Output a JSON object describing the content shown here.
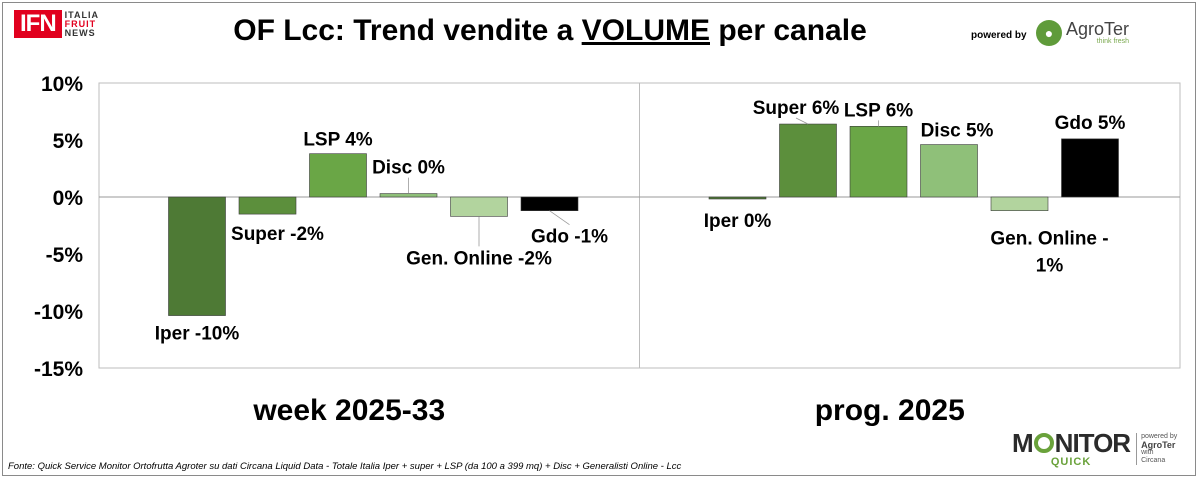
{
  "header": {
    "ifn_logo": "IFN",
    "ifn_sub": [
      "ITALIA",
      "FRUIT",
      "NEWS"
    ],
    "title_prefix": "OF Lcc: Trend vendite a ",
    "title_emph": "VOLUME",
    "title_suffix": " per canale",
    "powered_by": "powered by",
    "agroter_name": "AgroTer",
    "agroter_tagline": "think fresh"
  },
  "footer": {
    "source": "Fonte: Quick Service Monitor Ortofrutta Agroter su dati Circana Liquid Data - Totale Italia Iper + super + LSP (da 100 a 399 mq) + Disc + Generalisti Online - Lcc",
    "monitor_word_1": "M",
    "monitor_word_2": "NITOR",
    "monitor_quick": "QUICK",
    "monitor_side": [
      "powered by",
      "AgroTer",
      "with",
      "Circana"
    ]
  },
  "chart_data": {
    "type": "bar",
    "ylim": [
      -15,
      10
    ],
    "yticks": [
      10,
      5,
      0,
      -5,
      -10,
      -15
    ],
    "ytick_labels": [
      "10%",
      "5%",
      "0%",
      "-5%",
      "-10%",
      "-15%"
    ],
    "grid": false,
    "groups": [
      {
        "label": "week 2025-33",
        "bars": [
          {
            "channel": "Iper",
            "value": -10.4,
            "label": "Iper -10%",
            "color": "#4e7a35"
          },
          {
            "channel": "Super",
            "value": -1.5,
            "label": "Super -2%",
            "color": "#5c8f3c"
          },
          {
            "channel": "LSP",
            "value": 3.8,
            "label": "LSP 4%",
            "color": "#6aa646"
          },
          {
            "channel": "Disc",
            "value": 0.3,
            "label": "Disc 0%",
            "color": "#8fc079"
          },
          {
            "channel": "Gen. Online",
            "value": -1.7,
            "label": "Gen. Online -2%",
            "color": "#b2d49e"
          },
          {
            "channel": "Gdo",
            "value": -1.2,
            "label": "Gdo -1%",
            "color": "#000000"
          }
        ]
      },
      {
        "label": "prog. 2025",
        "bars": [
          {
            "channel": "Iper",
            "value": -0.1,
            "label": "Iper 0%",
            "color": "#4e7a35"
          },
          {
            "channel": "Super",
            "value": 6.4,
            "label": "Super 6%",
            "color": "#5c8f3c"
          },
          {
            "channel": "LSP",
            "value": 6.2,
            "label": "LSP 6%",
            "color": "#6aa646"
          },
          {
            "channel": "Disc",
            "value": 4.6,
            "label": "Disc 5%",
            "color": "#8fc079"
          },
          {
            "channel": "Gen. Online",
            "value": -1.2,
            "label_lines": [
              "Gen. Online -",
              "1%"
            ],
            "color": "#b2d49e"
          },
          {
            "channel": "Gdo",
            "value": 5.1,
            "label": "Gdo 5%",
            "color": "#000000"
          }
        ]
      }
    ]
  }
}
